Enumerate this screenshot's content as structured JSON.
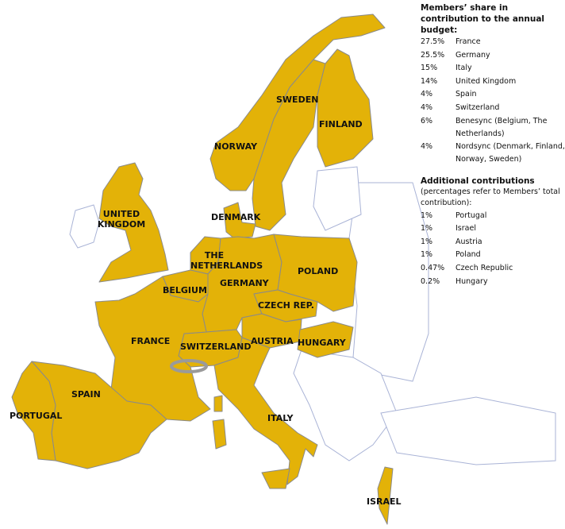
{
  "colors": {
    "member": "#E3B208",
    "non_member": "#ffffff",
    "border": "#a9b3d6"
  },
  "map_labels": {
    "norway": "NORWAY",
    "sweden": "SWEDEN",
    "finland": "FINLAND",
    "denmark": "DENMARK",
    "uk": "UNITED KINGDOM",
    "netherlands": "THE NETHERLANDS",
    "belgium": "BELGIUM",
    "germany": "GERMANY",
    "poland": "POLAND",
    "czech": "CZECH REP.",
    "france": "FRANCE",
    "switzerland": "SWITZERLAND",
    "austria": "AUSTRIA",
    "hungary": "HUNGARY",
    "spain": "SPAIN",
    "portugal": "PORTUGAL",
    "italy": "ITALY",
    "israel": "ISRAEL"
  },
  "legend": {
    "members_title": "Members’ share in contribution to the annual budget:",
    "members": [
      {
        "pct": "27.5%",
        "name": "France"
      },
      {
        "pct": "25.5%",
        "name": "Germany"
      },
      {
        "pct": "15%",
        "name": "Italy"
      },
      {
        "pct": "14%",
        "name": "United Kingdom"
      },
      {
        "pct": "4%",
        "name": "Spain"
      },
      {
        "pct": "4%",
        "name": "Switzerland"
      },
      {
        "pct": "6%",
        "name": "Benesync (Belgium, The Netherlands)"
      },
      {
        "pct": "4%",
        "name": "Nordsync (Denmark, Finland, Norway, Sweden)"
      }
    ],
    "additional_title": "Additional contributions",
    "additional_note": "(percentages refer to Members’ total contribution):",
    "additional": [
      {
        "pct": "1%",
        "name": "Portugal"
      },
      {
        "pct": "1%",
        "name": "Israel"
      },
      {
        "pct": "1%",
        "name": "Austria"
      },
      {
        "pct": "1%",
        "name": "Poland"
      },
      {
        "pct": "0.47%",
        "name": "Czech Republic"
      },
      {
        "pct": "0.2%",
        "name": "Hungary"
      }
    ]
  }
}
